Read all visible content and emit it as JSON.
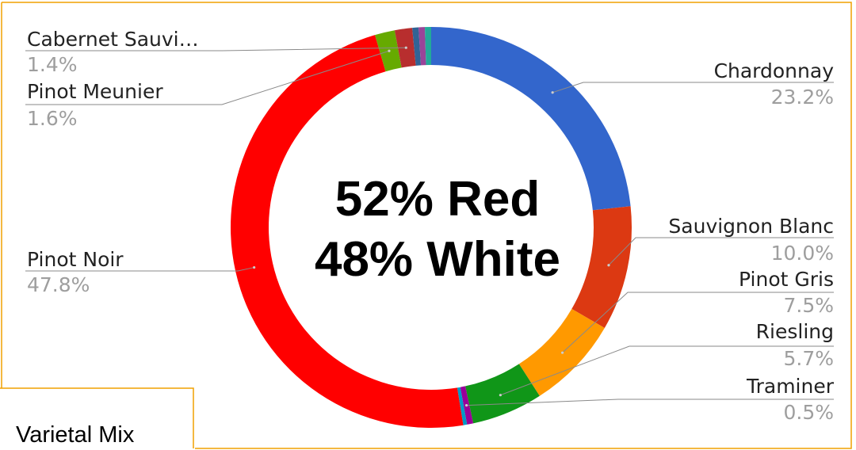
{
  "chart_data": {
    "type": "pie",
    "variant": "donut",
    "title": "Varietal Mix",
    "center_text": [
      "52% Red",
      "48% White"
    ],
    "slices": [
      {
        "label": "Chardonnay",
        "value": 23.2,
        "value_label": "23.2%",
        "color": "#3366cc"
      },
      {
        "label": "Sauvignon Blanc",
        "value": 10.0,
        "value_label": "10.0%",
        "color": "#dc3912"
      },
      {
        "label": "Pinot Gris",
        "value": 7.5,
        "value_label": "7.5%",
        "color": "#ff9900"
      },
      {
        "label": "Riesling",
        "value": 5.7,
        "value_label": "5.7%",
        "color": "#109618"
      },
      {
        "label": "Traminer",
        "value": 0.5,
        "value_label": "0.5%",
        "color": "#990099"
      },
      {
        "label": "",
        "value": 0.3,
        "value_label": "",
        "color": "#0099c6"
      },
      {
        "label": "Pinot Noir",
        "value": 47.8,
        "value_label": "47.8%",
        "color": "#ff0000"
      },
      {
        "label": "Pinot Meunier",
        "value": 1.6,
        "value_label": "1.6%",
        "color": "#66aa00"
      },
      {
        "label": "Cabernet Sauvi…",
        "value": 1.4,
        "value_label": "1.4%",
        "color": "#b82e2e"
      },
      {
        "label": "",
        "value": 0.5,
        "value_label": "",
        "color": "#316395"
      },
      {
        "label": "",
        "value": 0.5,
        "value_label": "",
        "color": "#994499"
      },
      {
        "label": "",
        "value": 0.5,
        "value_label": "",
        "color": "#22aa99"
      }
    ],
    "legend": "none"
  },
  "colors": {
    "frame": "#f0a000"
  }
}
